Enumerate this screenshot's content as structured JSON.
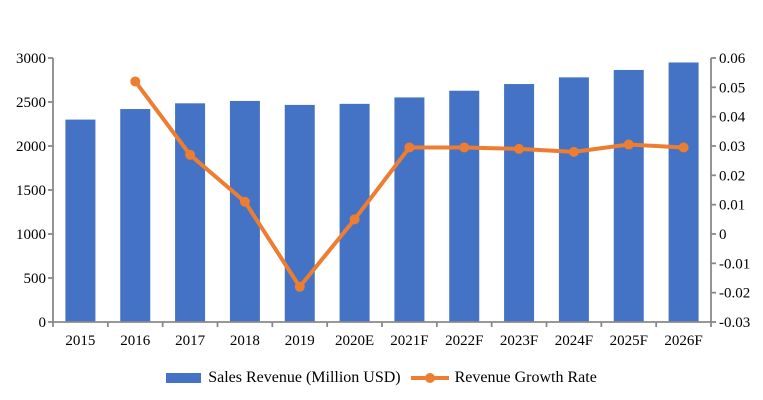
{
  "chart_data": {
    "type": "bar",
    "subtype": "bar-line-combo",
    "title": "",
    "categories": [
      "2015",
      "2016",
      "2017",
      "2018",
      "2019",
      "2020E",
      "2021F",
      "2022F",
      "2023F",
      "2024F",
      "2025F",
      "2026F"
    ],
    "series": [
      {
        "name": "Sales Revenue (Million USD)",
        "type": "bar",
        "axis": "left",
        "color": "#4472C4",
        "values": [
          2300,
          2420,
          2485,
          2512,
          2467,
          2479,
          2552,
          2628,
          2704,
          2780,
          2864,
          2949
        ]
      },
      {
        "name": "Revenue Growth Rate",
        "type": "line",
        "axis": "right",
        "color": "#ED7D31",
        "values": [
          null,
          0.052,
          0.027,
          0.011,
          -0.018,
          0.005,
          0.0295,
          0.0295,
          0.029,
          0.028,
          0.0305,
          0.0295
        ]
      }
    ],
    "left_axis": {
      "min": 0,
      "max": 3000,
      "step": 500,
      "tick_labels": [
        "0",
        "500",
        "1000",
        "1500",
        "2000",
        "2500",
        "3000"
      ]
    },
    "right_axis": {
      "min": -0.03,
      "max": 0.06,
      "step": 0.01,
      "tick_labels": [
        "-0.03",
        "-0.02",
        "-0.01",
        "0",
        "0.01",
        "0.02",
        "0.03",
        "0.04",
        "0.05",
        "0.06"
      ]
    },
    "grid": false,
    "legend_position": "bottom",
    "axis_color": "#898989",
    "text_color": "#000000",
    "background_color": "#ffffff"
  }
}
